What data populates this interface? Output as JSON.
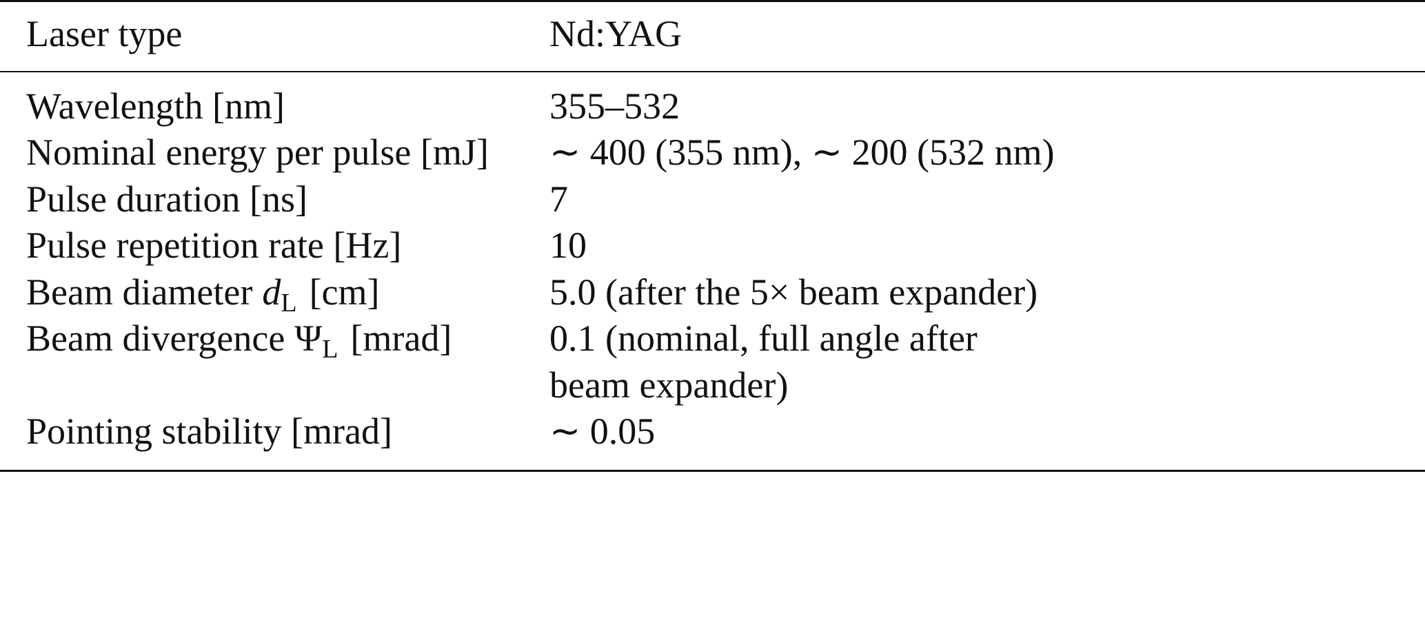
{
  "table": {
    "header": [
      "Laser type",
      "Nd:YAG"
    ],
    "rows": [
      [
        "Wavelength [nm]",
        "355–532"
      ],
      [
        "Nominal energy per pulse [mJ]",
        "∼ 400 (355 nm), ∼ 200 (532 nm)"
      ],
      [
        "Pulse duration [ns]",
        "7"
      ],
      [
        "Pulse repetition rate [Hz]",
        "10"
      ],
      [
        {
          "text": "Beam diameter",
          "symbol": "d",
          "sub": "L",
          "unit": "[cm]"
        },
        "5.0 (after the 5× beam expander)"
      ],
      [
        {
          "text": "Beam divergence",
          "symbol": "Ψ",
          "sub": "L",
          "unit": "[mrad]"
        },
        {
          "lines": [
            "0.1 (nominal, full angle after",
            "beam expander)"
          ]
        }
      ],
      [
        "Pointing stability [mrad]",
        "∼ 0.05"
      ]
    ]
  }
}
